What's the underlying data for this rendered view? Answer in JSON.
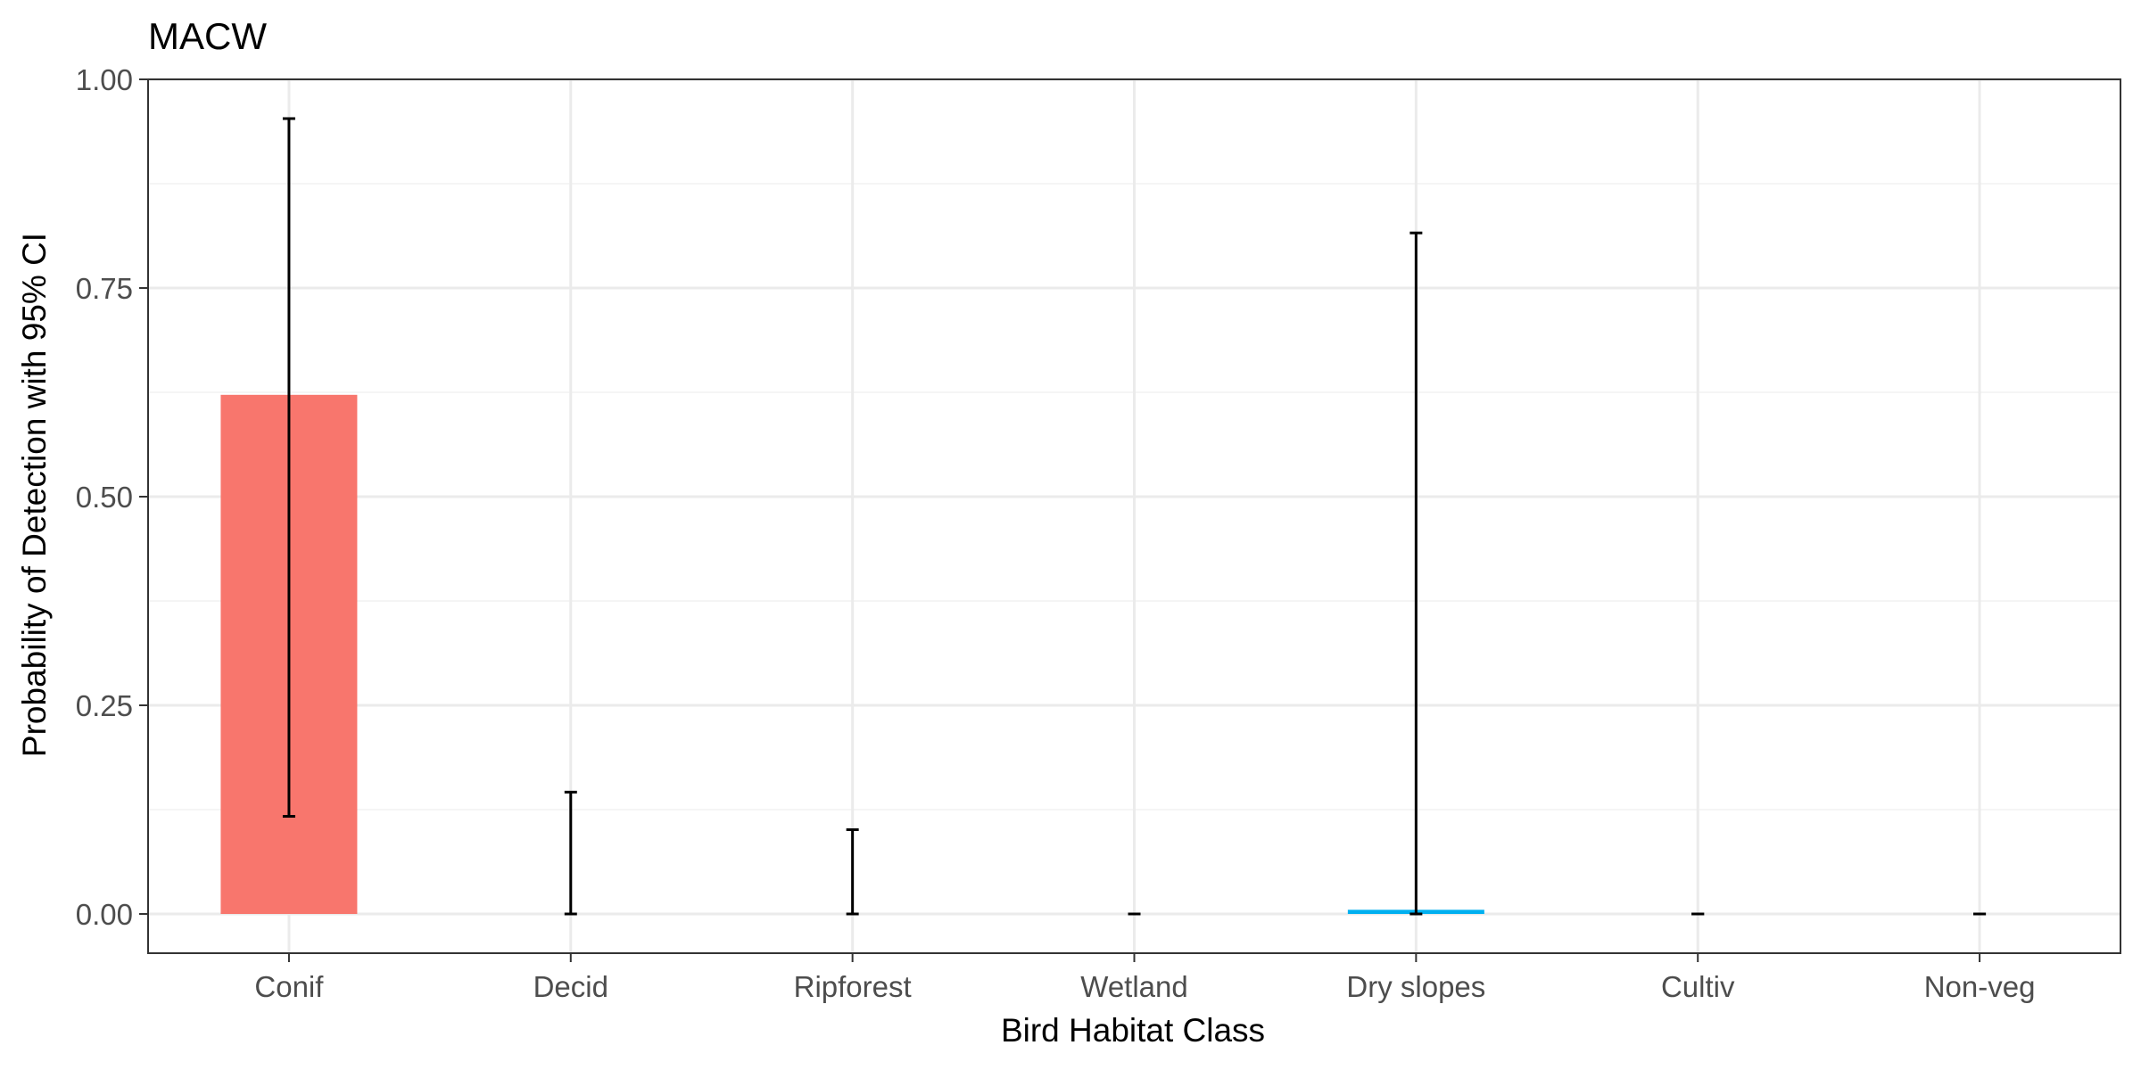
{
  "chart_data": {
    "type": "bar",
    "title": "MACW",
    "xlabel": "Bird Habitat Class",
    "ylabel": "Probability of Detection with 95% CI",
    "categories": [
      "Conif",
      "Decid",
      "Ripforest",
      "Wetland",
      "Dry slopes",
      "Cultiv",
      "Non-veg"
    ],
    "values": [
      0.622,
      0.0,
      0.0,
      0.0,
      0.005,
      0.0,
      0.0
    ],
    "ci_lower": [
      0.117,
      0.0,
      0.0,
      0.0,
      0.0,
      0.0,
      0.0
    ],
    "ci_upper": [
      0.953,
      0.146,
      0.101,
      0.0,
      0.816,
      0.0,
      0.0
    ],
    "bar_colors": [
      "#F8766D",
      "#F8766D",
      "#F8766D",
      "#F8766D",
      "#00B0F0",
      "#F8766D",
      "#F8766D"
    ],
    "errorbar_color": "#000000",
    "ylim": [
      -0.047,
      1.0
    ],
    "yticks": [
      0.0,
      0.25,
      0.5,
      0.75,
      1.0
    ],
    "ytick_labels": [
      "0.00",
      "0.25",
      "0.50",
      "0.75",
      "1.00"
    ],
    "grid": true,
    "legend": "none"
  }
}
